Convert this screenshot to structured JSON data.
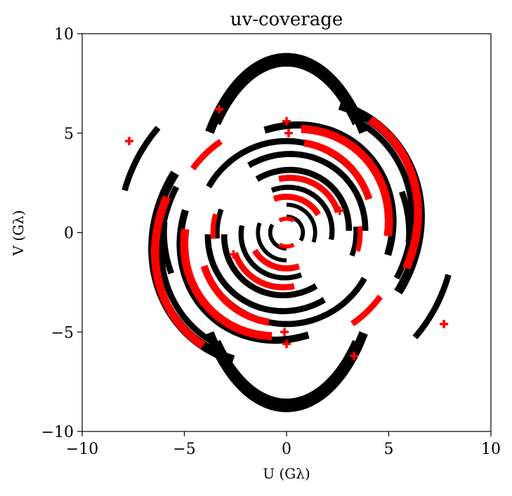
{
  "chart_data": {
    "type": "scatter",
    "title": "uv-coverage",
    "xlabel": "U (Gλ)",
    "ylabel": "V (Gλ)",
    "xlim": [
      -10,
      10
    ],
    "ylim": [
      -10,
      10
    ],
    "xticks": [
      -10,
      -5,
      0,
      5,
      10
    ],
    "yticks": [
      -10,
      -5,
      0,
      5,
      10
    ],
    "xtick_labels": [
      "−10",
      "−5",
      "0",
      "5",
      "10"
    ],
    "ytick_labels": [
      "−10",
      "−5",
      "0",
      "5",
      "10"
    ],
    "grid": false,
    "legend": "none",
    "marker": "plus",
    "colors": {
      "black_series": "#000000",
      "red_series": "#ff0000"
    },
    "series": [
      {
        "color": "#000000",
        "arcs": [
          {
            "cx": 0,
            "cy": 0,
            "rx": 4.6,
            "ry": 8.8,
            "rot": 0,
            "start": 35,
            "end": 145,
            "thick": 0.45
          },
          {
            "cx": 0,
            "cy": 0,
            "rx": 4.6,
            "ry": 8.8,
            "rot": 0,
            "start": 215,
            "end": 325,
            "thick": 0.45
          },
          {
            "cx": 0,
            "cy": 0,
            "rx": 4.4,
            "ry": 8.5,
            "rot": 0,
            "start": 40,
            "end": 140,
            "thick": 0.3
          },
          {
            "cx": 0,
            "cy": 0,
            "rx": 4.4,
            "ry": 8.5,
            "rot": 0,
            "start": 220,
            "end": 320,
            "thick": 0.3
          },
          {
            "cx": 0,
            "cy": 0,
            "rx": 6.2,
            "ry": 7.0,
            "rot": -40,
            "start": 10,
            "end": 110,
            "thick": 0.45
          },
          {
            "cx": 0,
            "cy": 0,
            "rx": 6.2,
            "ry": 7.0,
            "rot": -40,
            "start": 190,
            "end": 290,
            "thick": 0.45
          },
          {
            "cx": 0,
            "cy": 0,
            "rx": 5.8,
            "ry": 6.6,
            "rot": -40,
            "start": 15,
            "end": 100,
            "thick": 0.3
          },
          {
            "cx": 0,
            "cy": 0,
            "rx": 5.8,
            "ry": 6.6,
            "rot": -40,
            "start": 195,
            "end": 280,
            "thick": 0.3
          },
          {
            "cx": 0,
            "cy": 0,
            "rx": 5.0,
            "ry": 5.6,
            "rot": -35,
            "start": 20,
            "end": 140,
            "thick": 0.35
          },
          {
            "cx": 0,
            "cy": 0,
            "rx": 5.0,
            "ry": 5.6,
            "rot": -35,
            "start": 200,
            "end": 320,
            "thick": 0.35
          },
          {
            "cx": 0,
            "cy": 0,
            "rx": 4.4,
            "ry": 4.6,
            "rot": 0,
            "start": 40,
            "end": 150,
            "thick": 0.3
          },
          {
            "cx": 0,
            "cy": 0,
            "rx": 4.4,
            "ry": 4.6,
            "rot": 0,
            "start": 220,
            "end": 330,
            "thick": 0.3
          },
          {
            "cx": 0,
            "cy": 0,
            "rx": 3.8,
            "ry": 4.0,
            "rot": -30,
            "start": 30,
            "end": 150,
            "thick": 0.3
          },
          {
            "cx": 0,
            "cy": 0,
            "rx": 3.8,
            "ry": 4.0,
            "rot": -30,
            "start": 210,
            "end": 330,
            "thick": 0.3
          },
          {
            "cx": 0,
            "cy": 0,
            "rx": 3.0,
            "ry": 3.2,
            "rot": -30,
            "start": 30,
            "end": 150,
            "thick": 0.3
          },
          {
            "cx": 0,
            "cy": 0,
            "rx": 3.0,
            "ry": 3.2,
            "rot": -30,
            "start": 210,
            "end": 330,
            "thick": 0.3
          },
          {
            "cx": 0,
            "cy": 0,
            "rx": 2.2,
            "ry": 2.3,
            "rot": -30,
            "start": 20,
            "end": 140,
            "thick": 0.25
          },
          {
            "cx": 0,
            "cy": 0,
            "rx": 2.2,
            "ry": 2.3,
            "rot": -30,
            "start": 200,
            "end": 320,
            "thick": 0.25
          },
          {
            "cx": 0,
            "cy": 0,
            "rx": 1.4,
            "ry": 1.4,
            "rot": -30,
            "start": 10,
            "end": 120,
            "thick": 0.2
          },
          {
            "cx": 0,
            "cy": 0,
            "rx": 1.4,
            "ry": 1.4,
            "rot": -30,
            "start": 190,
            "end": 300,
            "thick": 0.2
          },
          {
            "cx": 0,
            "cy": 0,
            "rx": 0.8,
            "ry": 0.8,
            "rot": -30,
            "start": 0,
            "end": 120,
            "thick": 0.2
          },
          {
            "cx": 0,
            "cy": 0,
            "rx": 0.8,
            "ry": 0.8,
            "rot": -30,
            "start": 180,
            "end": 300,
            "thick": 0.2
          },
          {
            "cx": 0,
            "cy": 0,
            "rx": 8.2,
            "ry": 8.2,
            "rot": 0,
            "start": 140,
            "end": 165,
            "thick": 0.3
          },
          {
            "cx": 0,
            "cy": 0,
            "rx": 8.2,
            "ry": 8.2,
            "rot": 0,
            "start": 320,
            "end": 345,
            "thick": 0.3
          },
          {
            "cx": 0,
            "cy": 0,
            "rx": 6.0,
            "ry": 6.0,
            "rot": 0,
            "start": 355,
            "end": 20,
            "thick": 0.3
          },
          {
            "cx": 0,
            "cy": 0,
            "rx": 6.0,
            "ry": 6.0,
            "rot": 0,
            "start": 175,
            "end": 200,
            "thick": 0.3
          },
          {
            "cx": 0,
            "cy": 0,
            "rx": 3.4,
            "ry": 3.4,
            "rot": 0,
            "start": 160,
            "end": 185,
            "thick": 0.25
          },
          {
            "cx": 0,
            "cy": 0,
            "rx": 3.4,
            "ry": 3.4,
            "rot": 0,
            "start": 340,
            "end": 5,
            "thick": 0.25
          }
        ]
      },
      {
        "color": "#ff0000",
        "arcs": [
          {
            "cx": 0,
            "cy": 0,
            "rx": 6.0,
            "ry": 7.0,
            "rot": -40,
            "start": 20,
            "end": 95,
            "thick": 0.4
          },
          {
            "cx": 0,
            "cy": 0,
            "rx": 6.0,
            "ry": 7.0,
            "rot": -40,
            "start": 200,
            "end": 275,
            "thick": 0.4
          },
          {
            "cx": 0,
            "cy": 0,
            "rx": 4.8,
            "ry": 5.4,
            "rot": -35,
            "start": 30,
            "end": 120,
            "thick": 0.4
          },
          {
            "cx": 0,
            "cy": 0,
            "rx": 4.8,
            "ry": 5.4,
            "rot": -35,
            "start": 210,
            "end": 300,
            "thick": 0.4
          },
          {
            "cx": 0,
            "cy": 0,
            "rx": 4.2,
            "ry": 4.6,
            "rot": -20,
            "start": 40,
            "end": 100,
            "thick": 0.35
          },
          {
            "cx": 0,
            "cy": 0,
            "rx": 4.2,
            "ry": 4.6,
            "rot": -20,
            "start": 220,
            "end": 280,
            "thick": 0.35
          },
          {
            "cx": 0,
            "cy": 0,
            "rx": 2.6,
            "ry": 2.8,
            "rot": -30,
            "start": 50,
            "end": 130,
            "thick": 0.3
          },
          {
            "cx": 0,
            "cy": 0,
            "rx": 2.6,
            "ry": 2.8,
            "rot": -30,
            "start": 230,
            "end": 310,
            "thick": 0.3
          },
          {
            "cx": 0,
            "cy": 0,
            "rx": 1.8,
            "ry": 1.8,
            "rot": -30,
            "start": 60,
            "end": 140,
            "thick": 0.3
          },
          {
            "cx": 0,
            "cy": 0,
            "rx": 1.8,
            "ry": 1.8,
            "rot": -30,
            "start": 240,
            "end": 320,
            "thick": 0.3
          },
          {
            "cx": 0,
            "cy": 0,
            "rx": 5.6,
            "ry": 5.6,
            "rot": 0,
            "start": 125,
            "end": 145,
            "thick": 0.3
          },
          {
            "cx": 0,
            "cy": 0,
            "rx": 5.6,
            "ry": 5.6,
            "rot": 0,
            "start": 305,
            "end": 325,
            "thick": 0.3
          },
          {
            "cx": 0,
            "cy": 0,
            "rx": 3.6,
            "ry": 3.6,
            "rot": 0,
            "start": 345,
            "end": 5,
            "thick": 0.25
          },
          {
            "cx": 0,
            "cy": 0,
            "rx": 3.6,
            "ry": 3.6,
            "rot": 0,
            "start": 165,
            "end": 185,
            "thick": 0.25
          },
          {
            "cx": 0,
            "cy": 0,
            "rx": 0.7,
            "ry": 0.7,
            "rot": 0,
            "start": 60,
            "end": 120,
            "thick": 0.2
          },
          {
            "cx": 0,
            "cy": 0,
            "rx": 0.7,
            "ry": 0.7,
            "rot": 0,
            "start": 240,
            "end": 300,
            "thick": 0.2
          }
        ],
        "points": [
          {
            "x": -7.7,
            "y": 4.6
          },
          {
            "x": 7.7,
            "y": -4.6
          },
          {
            "x": -3.3,
            "y": 6.2
          },
          {
            "x": 3.3,
            "y": -6.2
          },
          {
            "x": 0.1,
            "y": 5.0
          },
          {
            "x": -0.1,
            "y": -5.0
          },
          {
            "x": 0.0,
            "y": 5.6
          },
          {
            "x": 0.0,
            "y": -5.6
          },
          {
            "x": 2.6,
            "y": 1.1
          },
          {
            "x": -2.6,
            "y": -1.1
          }
        ]
      }
    ]
  }
}
